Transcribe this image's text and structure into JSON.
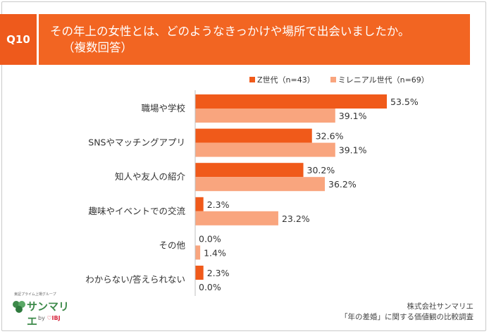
{
  "question": {
    "badge": "Q10",
    "line1": "その年上の女性とは、どのようなきっかけや場所で出会いましたか。",
    "line2": "（複数回答）"
  },
  "colors": {
    "series_z": "#f05a1a",
    "series_millennial": "#f9a57e",
    "header_bg": "#f26522",
    "badge_bg": "#ee5a1c"
  },
  "chart_data": {
    "type": "bar",
    "orientation": "horizontal",
    "categories": [
      "職場や学校",
      "SNSやマッチングアプリ",
      "知人や友人の紹介",
      "趣味やイベントでの交流",
      "その他",
      "わからない/答えられない"
    ],
    "series": [
      {
        "name": "Z世代（n=43）",
        "values": [
          53.5,
          32.6,
          30.2,
          2.3,
          0.0,
          2.3
        ]
      },
      {
        "name": "ミレニアル世代（n=69）",
        "values": [
          39.1,
          39.1,
          36.2,
          23.2,
          1.4,
          0.0
        ]
      }
    ],
    "value_labels": [
      [
        "53.5%",
        "32.6%",
        "30.2%",
        "2.3%",
        "0.0%",
        "2.3%"
      ],
      [
        "39.1%",
        "39.1%",
        "36.2%",
        "23.2%",
        "1.4%",
        "0.0%"
      ]
    ],
    "xlim": [
      0,
      60
    ],
    "legend_position": "top-right",
    "grid": false
  },
  "footer": {
    "company": "株式会社サンマリエ",
    "survey": "「年の差婚」に関する価値観の比較調査"
  },
  "logo": {
    "tagline": "東証プライム上場グループ",
    "name": "サンマリエ",
    "by_prefix": "by",
    "by_brand": "IBJ"
  }
}
